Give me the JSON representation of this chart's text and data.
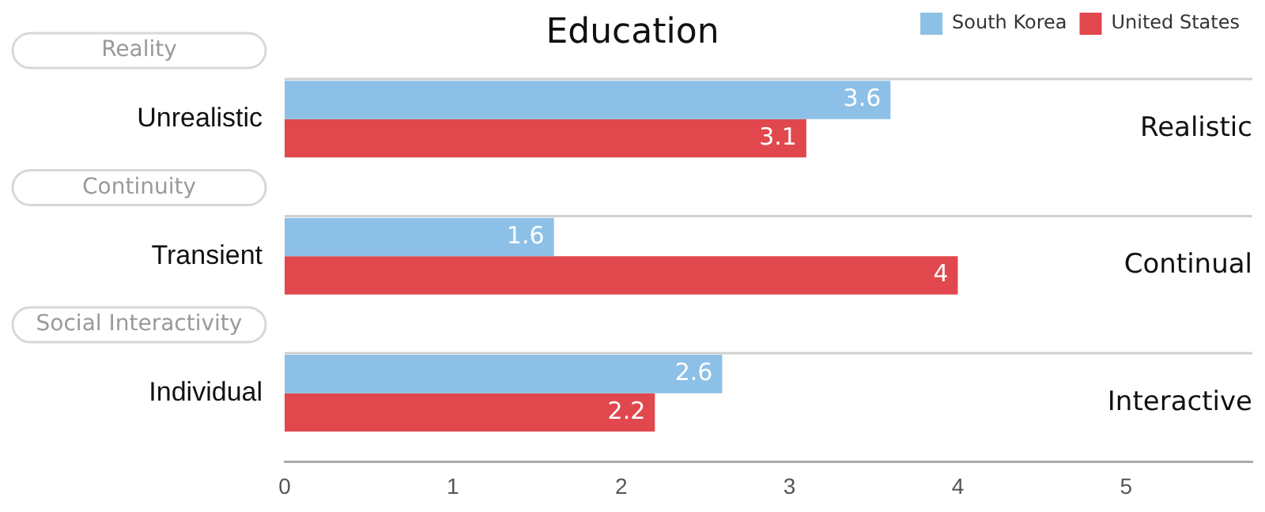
{
  "chart_data": {
    "type": "bar",
    "orientation": "horizontal",
    "title": "Education",
    "categories": [
      "Unrealistic",
      "Transient",
      "Individual"
    ],
    "series": [
      {
        "name": "South Korea",
        "color": "#8dc0e6",
        "values": [
          3.6,
          1.6,
          2.6
        ]
      },
      {
        "name": "United States",
        "color": "#e0484e",
        "values": [
          3.1,
          4,
          2.2
        ]
      }
    ],
    "xlim": [
      0,
      5.75
    ],
    "xticks": [
      0,
      1,
      2,
      3,
      4,
      5
    ],
    "grid": false,
    "legend": "top right",
    "data_labels": true,
    "annotations": [
      "Reality",
      "Continuity",
      "Social Interactivity",
      "Realistic",
      "Continual",
      "Interactive"
    ]
  }
}
